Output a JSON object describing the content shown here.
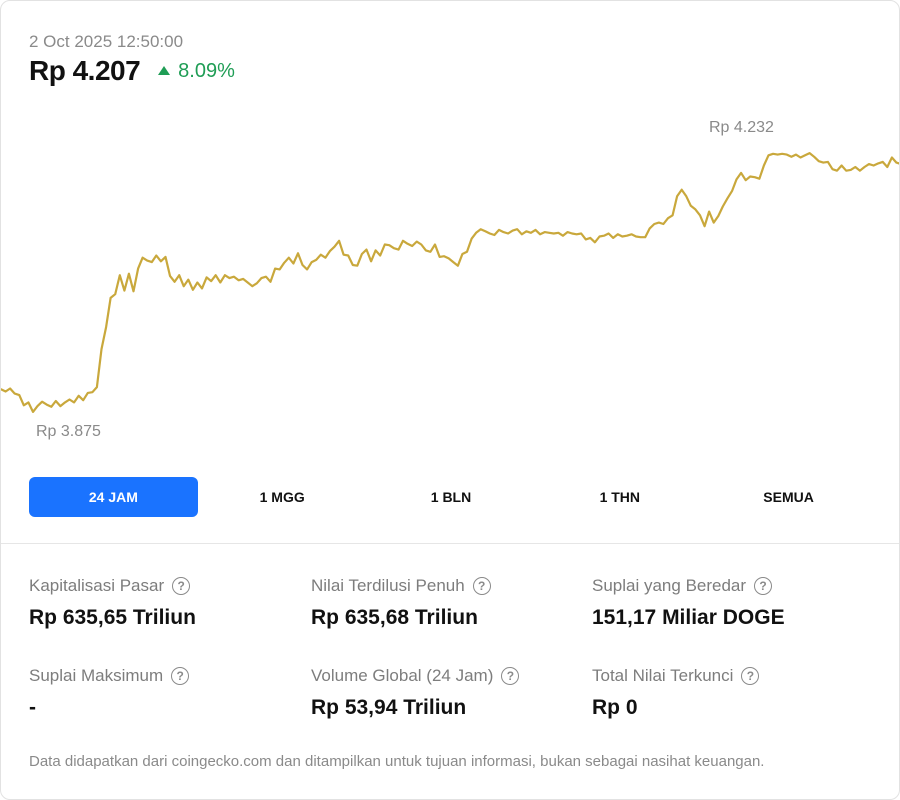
{
  "header": {
    "timestamp": "2 Oct 2025 12:50:00",
    "price": "Rp 4.207",
    "change": "8.09%",
    "change_direction": "up",
    "change_color": "#1f9d55"
  },
  "chart_data": {
    "type": "line",
    "line_color": "#c9a83c",
    "max_label": "Rp 4.232",
    "min_label": "Rp 3.875",
    "max_value": 4232,
    "min_value": 3875,
    "series": [
      {
        "values": [
          3902,
          3899,
          3903,
          3896,
          3894,
          3880,
          3884,
          3871,
          3879,
          3885,
          3881,
          3878,
          3886,
          3879,
          3884,
          3888,
          3884,
          3893,
          3887,
          3897,
          3898,
          3905,
          3957,
          3987,
          4027,
          4032,
          4058,
          4037,
          4060,
          4036,
          4067,
          4082,
          4078,
          4076,
          4085,
          4077,
          4083,
          4057,
          4049,
          4058,
          4043,
          4052,
          4038,
          4048,
          4040,
          4055,
          4050,
          4058,
          4048,
          4058,
          4054,
          4056,
          4051,
          4053,
          4048,
          4043,
          4047,
          4054,
          4056,
          4049,
          4067,
          4066,
          4075,
          4082,
          4074,
          4088,
          4072,
          4066,
          4076,
          4079,
          4086,
          4082,
          4091,
          4097,
          4105,
          4086,
          4085,
          4072,
          4071,
          4087,
          4093,
          4077,
          4092,
          4085,
          4100,
          4099,
          4095,
          4093,
          4105,
          4101,
          4098,
          4104,
          4100,
          4092,
          4090,
          4100,
          4083,
          4084,
          4081,
          4076,
          4071,
          4087,
          4090,
          4108,
          4116,
          4121,
          4118,
          4115,
          4113,
          4120,
          4117,
          4115,
          4119,
          4121,
          4114,
          4118,
          4116,
          4120,
          4114,
          4117,
          4116,
          4115,
          4116,
          4112,
          4117,
          4115,
          4114,
          4115,
          4107,
          4109,
          4103,
          4111,
          4112,
          4115,
          4109,
          4114,
          4111,
          4112,
          4114,
          4111,
          4110,
          4110,
          4122,
          4128,
          4130,
          4128,
          4136,
          4140,
          4166,
          4175,
          4166,
          4153,
          4148,
          4140,
          4125,
          4145,
          4130,
          4139,
          4152,
          4163,
          4173,
          4189,
          4198,
          4188,
          4193,
          4192,
          4190,
          4208,
          4222,
          4224,
          4223,
          4224,
          4223,
          4220,
          4223,
          4219,
          4222,
          4225,
          4220,
          4214,
          4212,
          4213,
          4203,
          4201,
          4208,
          4201,
          4202,
          4206,
          4201,
          4206,
          4210,
          4208,
          4211,
          4213,
          4206,
          4219,
          4212,
          4210
        ]
      }
    ]
  },
  "ranges": {
    "active_color": "#1a73ff",
    "items": [
      {
        "label": "24 JAM",
        "active": true
      },
      {
        "label": "1 MGG",
        "active": false
      },
      {
        "label": "1 BLN",
        "active": false
      },
      {
        "label": "1 THN",
        "active": false
      },
      {
        "label": "SEMUA",
        "active": false
      }
    ]
  },
  "stats": [
    {
      "label": "Kapitalisasi Pasar",
      "value": "Rp 635,65 Triliun"
    },
    {
      "label": "Nilai Terdilusi Penuh",
      "value": "Rp 635,68 Triliun"
    },
    {
      "label": "Suplai yang Beredar",
      "value": "151,17 Miliar DOGE"
    },
    {
      "label": "Suplai Maksimum",
      "value": "-"
    },
    {
      "label": "Volume Global (24 Jam)",
      "value": "Rp 53,94 Triliun"
    },
    {
      "label": "Total Nilai Terkunci",
      "value": "Rp 0"
    }
  ],
  "help_icon_glyph": "?",
  "footer": "Data didapatkan dari coingecko.com dan ditampilkan untuk tujuan informasi, bukan sebagai nasihat keuangan."
}
